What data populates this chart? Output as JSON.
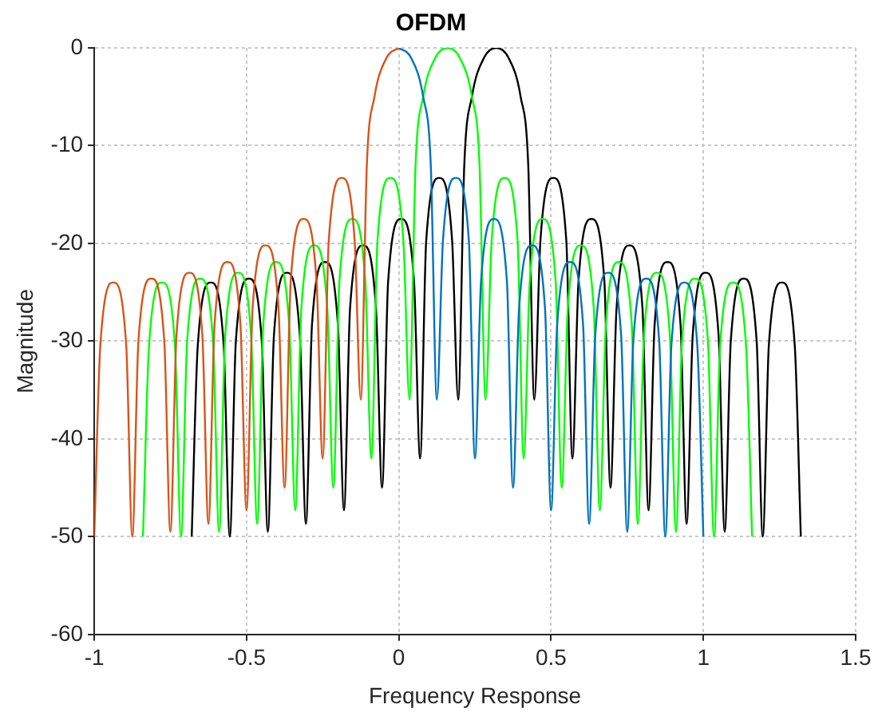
{
  "chart_data": {
    "type": "line",
    "title": "OFDM",
    "xlabel": "Frequency Response",
    "ylabel": "Magnitude",
    "xlim": [
      -1,
      1.5
    ],
    "xticks": [
      -1,
      -0.5,
      0,
      0.5,
      1,
      1.5
    ],
    "ylim": [
      -60,
      0
    ],
    "yticks": [
      -60,
      -50,
      -40,
      -30,
      -20,
      -10,
      0
    ],
    "grid": true,
    "legend": false,
    "series": [
      {
        "color": "#d95319",
        "x": [
          -1,
          -0.98,
          -0.9375,
          -0.895,
          -0.875,
          -0.855,
          -0.8125,
          -0.77,
          -0.75,
          -0.73,
          -0.6875,
          -0.645,
          -0.625,
          -0.605,
          -0.5625,
          -0.52,
          -0.5,
          -0.48,
          -0.4375,
          -0.395,
          -0.375,
          -0.355,
          -0.3125,
          -0.27,
          -0.25,
          -0.23,
          -0.1875,
          -0.145,
          -0.125,
          -0.105,
          -0.08,
          -0.04,
          0
        ],
        "values": [
          -50,
          -30.4,
          -24,
          -30.4,
          -50,
          -30,
          -23.6,
          -30,
          -49.5,
          -29.4,
          -23,
          -29.4,
          -48.7,
          -28.3,
          -21.9,
          -28.3,
          -47.3,
          -26.6,
          -20.2,
          -26.6,
          -45,
          -23.9,
          -17.5,
          -23.9,
          -42,
          -19.7,
          -13.3,
          -19.7,
          -36,
          -12,
          -5,
          -1,
          0
        ]
      },
      {
        "color": "#0072bd",
        "x": [
          0,
          0.04,
          0.08,
          0.105,
          0.125,
          0.145,
          0.1875,
          0.23,
          0.25,
          0.27,
          0.3125,
          0.355,
          0.375,
          0.395,
          0.4375,
          0.48,
          0.5,
          0.52,
          0.5625,
          0.605,
          0.625,
          0.645,
          0.6875,
          0.73,
          0.75,
          0.77,
          0.8125,
          0.855,
          0.875,
          0.895,
          0.9375,
          0.98,
          1
        ],
        "values": [
          0,
          -1,
          -5,
          -12,
          -36,
          -19.7,
          -13.3,
          -19.7,
          -42,
          -23.9,
          -17.5,
          -23.9,
          -45,
          -26.6,
          -20.2,
          -26.6,
          -47.3,
          -28.3,
          -21.9,
          -28.3,
          -48.7,
          -29.4,
          -23,
          -29.4,
          -49.5,
          -30,
          -23.6,
          -30,
          -50,
          -30.4,
          -24,
          -30.4,
          -50
        ]
      },
      {
        "color": "#00ff00",
        "x": [
          -0.84,
          -0.82,
          -0.7775,
          -0.735,
          -0.715,
          -0.695,
          -0.6525,
          -0.61,
          -0.59,
          -0.57,
          -0.5275,
          -0.485,
          -0.465,
          -0.445,
          -0.4025,
          -0.36,
          -0.34,
          -0.32,
          -0.2775,
          -0.235,
          -0.215,
          -0.195,
          -0.1525,
          -0.11,
          -0.09,
          -0.07,
          -0.0275,
          0.015,
          0.035,
          0.055,
          0.08,
          0.12,
          0.16,
          0.2,
          0.24,
          0.265,
          0.285,
          0.305,
          0.3475,
          0.39,
          0.41,
          0.43,
          0.4725,
          0.515,
          0.535,
          0.555,
          0.5975,
          0.64,
          0.66,
          0.68,
          0.7225,
          0.765,
          0.785,
          0.805,
          0.8475,
          0.89,
          0.91,
          0.93,
          0.9725,
          1.015,
          1.035,
          1.055,
          1.0975,
          1.14,
          1.16
        ],
        "values": [
          -50,
          -30.4,
          -24,
          -30.4,
          -50,
          -30,
          -23.6,
          -30,
          -49.5,
          -29.4,
          -23,
          -29.4,
          -48.7,
          -28.3,
          -21.9,
          -28.3,
          -47.3,
          -26.6,
          -20.2,
          -26.6,
          -45,
          -23.9,
          -17.5,
          -23.9,
          -42,
          -19.7,
          -13.3,
          -19.7,
          -36,
          -12,
          -5,
          -1,
          0,
          -1,
          -5,
          -12,
          -36,
          -19.7,
          -13.3,
          -19.7,
          -42,
          -23.9,
          -17.5,
          -23.9,
          -45,
          -26.6,
          -20.2,
          -26.6,
          -47.3,
          -28.3,
          -21.9,
          -28.3,
          -48.7,
          -29.4,
          -23,
          -29.4,
          -49.5,
          -30,
          -23.6,
          -30,
          -50,
          -30.4,
          -24,
          -30.4,
          -50
        ]
      },
      {
        "color": "#000000",
        "x": [
          -0.68,
          -0.66,
          -0.6175,
          -0.575,
          -0.555,
          -0.535,
          -0.4925,
          -0.45,
          -0.43,
          -0.41,
          -0.3675,
          -0.325,
          -0.305,
          -0.285,
          -0.2425,
          -0.2,
          -0.18,
          -0.16,
          -0.1175,
          -0.075,
          -0.055,
          -0.035,
          0.0075,
          0.05,
          0.07,
          0.09,
          0.1325,
          0.175,
          0.195,
          0.215,
          0.24,
          0.28,
          0.32,
          0.36,
          0.4,
          0.425,
          0.445,
          0.465,
          0.5075,
          0.55,
          0.57,
          0.59,
          0.6325,
          0.675,
          0.695,
          0.715,
          0.7575,
          0.8,
          0.82,
          0.84,
          0.8825,
          0.925,
          0.945,
          0.965,
          1.0075,
          1.05,
          1.07,
          1.09,
          1.1325,
          1.175,
          1.195,
          1.215,
          1.2575,
          1.3,
          1.32
        ],
        "values": [
          -50,
          -30.4,
          -24,
          -30.4,
          -50,
          -30,
          -23.6,
          -30,
          -49.5,
          -29.4,
          -23,
          -29.4,
          -48.7,
          -28.3,
          -21.9,
          -28.3,
          -47.3,
          -26.6,
          -20.2,
          -26.6,
          -45,
          -23.9,
          -17.5,
          -23.9,
          -42,
          -19.7,
          -13.3,
          -19.7,
          -36,
          -12,
          -5,
          -1,
          0,
          -1,
          -5,
          -12,
          -36,
          -19.7,
          -13.3,
          -19.7,
          -42,
          -23.9,
          -17.5,
          -23.9,
          -45,
          -26.6,
          -20.2,
          -26.6,
          -47.3,
          -28.3,
          -21.9,
          -28.3,
          -48.7,
          -29.4,
          -23,
          -29.4,
          -49.5,
          -30,
          -23.6,
          -30,
          -50,
          -30.4,
          -24,
          -30.4,
          -50
        ]
      }
    ]
  }
}
